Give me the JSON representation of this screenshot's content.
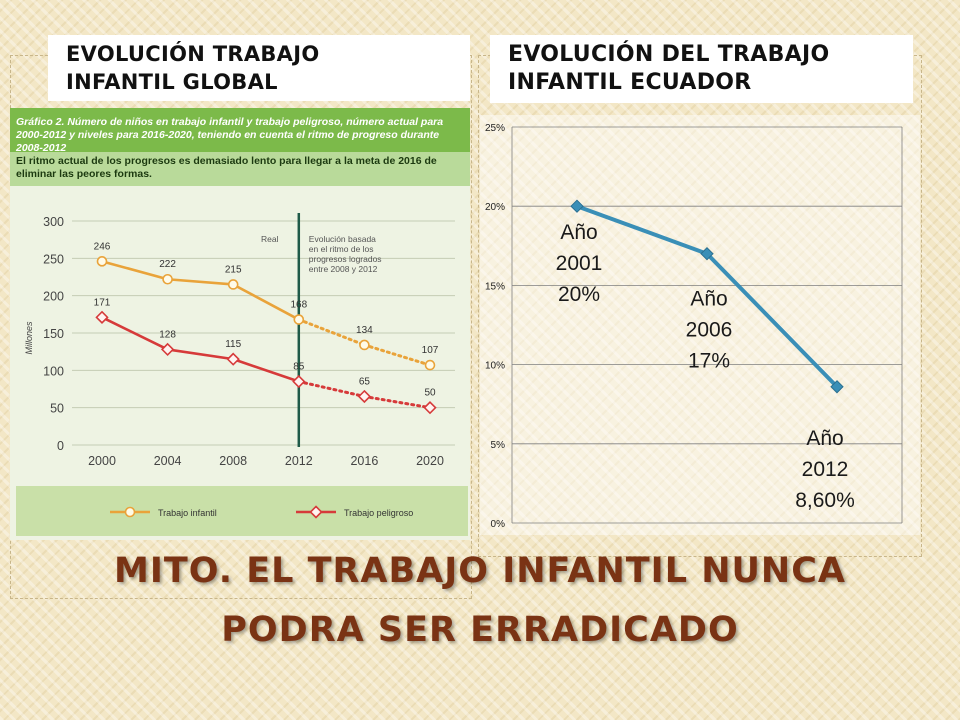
{
  "slide": {
    "left_title": "EVOLUCIÓN TRABAJO\nINFANTIL GLOBAL",
    "right_title": "EVOLUCIÓN DEL TRABAJO\nINFANTIL ECUADOR",
    "main_title_line1": "MITO. EL TRABAJO INFANTIL NUNCA",
    "main_title_line2": "PODRA SER ERRADICADO",
    "background_color": "#f3e7c6",
    "title_color": "#7a3314"
  },
  "chart_data": [
    {
      "type": "line",
      "title": "Gráfico 2. Número de niños en trabajo infantil y trabajo peligroso, número actual para 2000-2012 y niveles para 2016-2020, teniendo en cuenta el ritmo de progreso durante 2008-2012",
      "subtitle": "El ritmo actual de los progresos es demasiado lento para llegar a la meta de 2016 de eliminar las peores formas.",
      "ylabel": "Millones",
      "xlabel": "",
      "x": [
        2000,
        2004,
        2008,
        2012,
        2016,
        2020
      ],
      "x_ticks": [
        "2000",
        "2004",
        "2008",
        "2012",
        "2016",
        "2020"
      ],
      "y_ticks": [
        "0",
        "50",
        "100",
        "150",
        "200",
        "250",
        "300"
      ],
      "ylim": [
        0,
        300
      ],
      "grid": true,
      "annotations": [
        "Real",
        "Evolución basada en el ritmo de los progresos logrados entre 2008 y 2012"
      ],
      "annotation_lines": [
        "Evolución basada",
        "en el ritmo de los",
        "progresos logrados",
        "entre 2008 y 2012"
      ],
      "divider_x": 2012,
      "series": [
        {
          "name": "Trabajo infantil",
          "color": "#e9a33a",
          "marker": "circle",
          "values": [
            246,
            222,
            215,
            168,
            134,
            107
          ],
          "labels": [
            "246",
            "222",
            "215",
            "168",
            "134",
            "107"
          ]
        },
        {
          "name": "Trabajo peligroso",
          "color": "#d63a3a",
          "marker": "diamond",
          "values": [
            171,
            128,
            115,
            85,
            65,
            50
          ],
          "labels": [
            "171",
            "128",
            "115",
            "85",
            "65",
            "50"
          ]
        }
      ],
      "legend_position": "bottom"
    },
    {
      "type": "line",
      "title": "",
      "xlabel": "",
      "ylabel": "",
      "x": [
        "Año 2001",
        "Año 2006",
        "Año 2012"
      ],
      "ylim": [
        0,
        25
      ],
      "y_ticks": [
        "0%",
        "5%",
        "10%",
        "15%",
        "20%",
        "25%"
      ],
      "grid": true,
      "series": [
        {
          "color": "#3a8fb7",
          "values": [
            20,
            17,
            8.6
          ]
        }
      ],
      "data_labels": [
        [
          "Año",
          "2001",
          "20%"
        ],
        [
          "Año",
          "2006",
          "17%"
        ],
        [
          "Año",
          "2012",
          "8,60%"
        ]
      ]
    }
  ]
}
